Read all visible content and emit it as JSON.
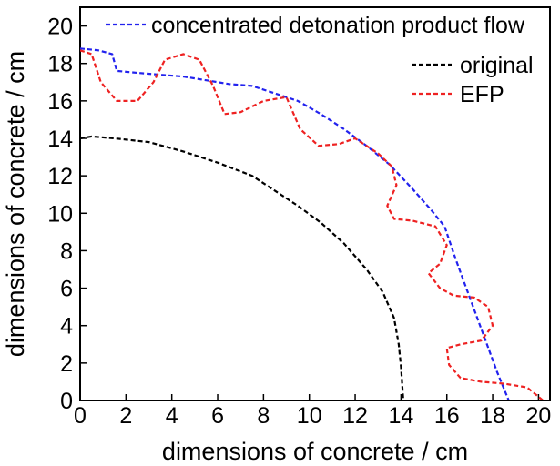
{
  "chart_data": {
    "type": "line",
    "xlabel": "dimensions of concrete / cm",
    "ylabel": "dimensions of concrete / cm",
    "xlim": [
      0,
      20.5
    ],
    "ylim": [
      0,
      21
    ],
    "x_ticks": [
      0,
      2,
      4,
      6,
      8,
      10,
      12,
      14,
      16,
      18,
      20
    ],
    "y_ticks": [
      0,
      2,
      4,
      6,
      8,
      10,
      12,
      14,
      16,
      18,
      20
    ],
    "grid": false,
    "legend_position": "top-right",
    "series": [
      {
        "name": "concentrated detonation product flow",
        "color": "#2222ee",
        "style": "dashed",
        "points": [
          [
            0,
            18.8
          ],
          [
            0.8,
            18.7
          ],
          [
            1.4,
            18.5
          ],
          [
            1.6,
            17.6
          ],
          [
            2.5,
            17.5
          ],
          [
            3.5,
            17.4
          ],
          [
            4.5,
            17.3
          ],
          [
            5.5,
            17.1
          ],
          [
            6.5,
            16.9
          ],
          [
            7.5,
            16.8
          ],
          [
            8.5,
            16.4
          ],
          [
            9.5,
            16.0
          ],
          [
            10.5,
            15.3
          ],
          [
            11.5,
            14.5
          ],
          [
            12.5,
            13.6
          ],
          [
            13.5,
            12.6
          ],
          [
            14.5,
            11.3
          ],
          [
            15.3,
            10.2
          ],
          [
            15.9,
            9.3
          ],
          [
            16.4,
            7.5
          ],
          [
            17.0,
            5.5
          ],
          [
            17.6,
            3.5
          ],
          [
            18.2,
            1.5
          ],
          [
            18.6,
            0.3
          ],
          [
            18.7,
            0
          ]
        ]
      },
      {
        "name": "original",
        "color": "#000000",
        "style": "dashed",
        "points": [
          [
            0,
            14.0
          ],
          [
            0.5,
            14.1
          ],
          [
            1.5,
            14.0
          ],
          [
            3.0,
            13.8
          ],
          [
            4.5,
            13.3
          ],
          [
            6.0,
            12.7
          ],
          [
            7.5,
            12.0
          ],
          [
            8.5,
            11.2
          ],
          [
            9.5,
            10.4
          ],
          [
            10.5,
            9.5
          ],
          [
            11.5,
            8.4
          ],
          [
            12.5,
            7.0
          ],
          [
            13.2,
            5.8
          ],
          [
            13.7,
            4.4
          ],
          [
            13.9,
            3.0
          ],
          [
            14.0,
            1.8
          ],
          [
            14.1,
            0
          ]
        ]
      },
      {
        "name": "EFP",
        "color": "#ee2222",
        "style": "dashed",
        "points": [
          [
            0,
            18.7
          ],
          [
            0.5,
            18.5
          ],
          [
            0.9,
            17.0
          ],
          [
            1.6,
            16.0
          ],
          [
            2.5,
            16.0
          ],
          [
            3.2,
            17.0
          ],
          [
            3.7,
            18.2
          ],
          [
            4.5,
            18.5
          ],
          [
            5.2,
            18.2
          ],
          [
            5.8,
            16.8
          ],
          [
            6.3,
            15.3
          ],
          [
            7.0,
            15.4
          ],
          [
            8.0,
            16.0
          ],
          [
            9.0,
            16.2
          ],
          [
            9.6,
            14.5
          ],
          [
            10.4,
            13.6
          ],
          [
            11.3,
            13.7
          ],
          [
            12.0,
            14.0
          ],
          [
            13.0,
            13.2
          ],
          [
            13.6,
            12.5
          ],
          [
            13.8,
            11.5
          ],
          [
            13.4,
            10.4
          ],
          [
            13.7,
            9.7
          ],
          [
            14.5,
            9.6
          ],
          [
            15.5,
            9.3
          ],
          [
            16.0,
            8.3
          ],
          [
            15.7,
            7.3
          ],
          [
            15.2,
            6.8
          ],
          [
            15.7,
            6.0
          ],
          [
            16.3,
            5.6
          ],
          [
            17.2,
            5.5
          ],
          [
            17.8,
            5.0
          ],
          [
            18.0,
            4.0
          ],
          [
            17.5,
            3.2
          ],
          [
            16.6,
            3.0
          ],
          [
            16.0,
            2.8
          ],
          [
            16.1,
            1.9
          ],
          [
            16.6,
            1.2
          ],
          [
            17.5,
            1.0
          ],
          [
            18.5,
            0.9
          ],
          [
            19.5,
            0.7
          ],
          [
            20.2,
            0
          ]
        ]
      }
    ]
  }
}
